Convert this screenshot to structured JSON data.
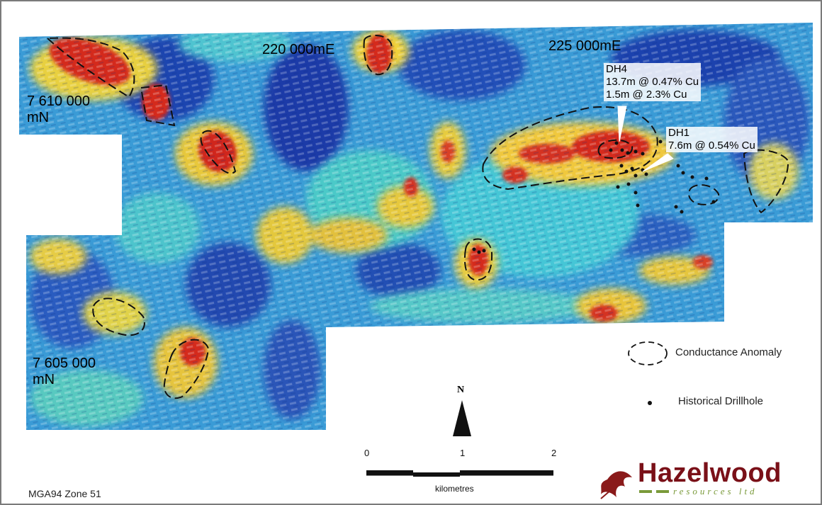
{
  "map": {
    "easting_labels": [
      "220 000mE",
      "225 000mE"
    ],
    "northing_labels": [
      {
        "value": "7 610 000",
        "unit": "mN"
      },
      {
        "value": "7 605 000",
        "unit": "mN"
      }
    ],
    "drillholes": [
      {
        "name": "DH4",
        "results": [
          "13.7m @ 0.47% Cu",
          "1.5m @ 2.3% Cu"
        ]
      },
      {
        "name": "DH1",
        "results": [
          "7.6m @ 0.54% Cu"
        ]
      }
    ],
    "north_arrow_label": "N",
    "projection": "MGA94 Zone 51"
  },
  "legend": {
    "conductance": "Conductance Anomaly",
    "drillhole": "Historical Drillhole"
  },
  "scale_bar": {
    "ticks": [
      "0",
      "1",
      "2"
    ],
    "unit": "kilometres"
  },
  "logo": {
    "name": "Hazelwood",
    "tagline": "resources ltd"
  },
  "colors": {
    "low": "#1c3fae",
    "mid": "#35b8d8",
    "high_yellow": "#f2d23c",
    "high_red": "#d8241e",
    "logo": "#7a1018"
  }
}
